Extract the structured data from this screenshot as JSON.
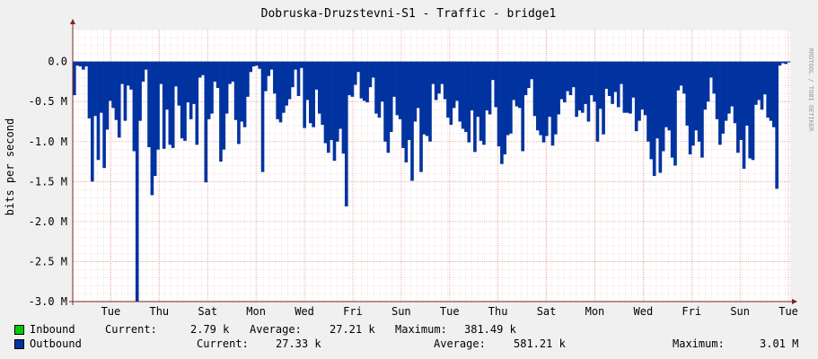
{
  "title": "Dobruska-Druzstevni-S1 - Traffic - bridge1",
  "watermark": "RRDTOOL / TOBI OETIKER",
  "chart_data": {
    "type": "area",
    "ylabel": "bits per second",
    "ylim": [
      -3000000,
      400000
    ],
    "yticks": [
      "0.0",
      "-0.5 M",
      "-1.0 M",
      "-1.5 M",
      "-2.0 M",
      "-2.5 M",
      "-3.0 M"
    ],
    "ytick_values": [
      0,
      -500000,
      -1000000,
      -1500000,
      -2000000,
      -2500000,
      -3000000
    ],
    "xticks": [
      "Tue",
      "Thu",
      "Sat",
      "Mon",
      "Wed",
      "Fri",
      "Sun",
      "Tue",
      "Thu",
      "Sat",
      "Mon",
      "Wed",
      "Fri",
      "Sun",
      "Tue"
    ],
    "grid": true,
    "colors": {
      "inbound": "#00cc00",
      "outbound": "#0033a0",
      "background": "#ffffff",
      "grid": "#e8a0a0",
      "axis": "#802020"
    },
    "series": [
      {
        "name": "Inbound",
        "values": [
          10,
          30,
          20,
          0,
          20,
          130,
          0,
          80,
          0,
          30,
          40,
          20,
          0,
          40,
          20,
          0,
          30,
          0,
          0,
          30,
          130,
          0,
          20,
          0,
          0,
          20,
          60,
          380,
          0,
          0,
          20,
          20,
          0,
          30,
          0,
          0,
          20,
          10,
          0,
          30,
          20,
          0,
          20,
          0,
          30,
          10,
          0,
          40,
          0,
          0,
          30,
          0,
          0,
          20,
          40,
          0,
          0,
          0,
          20,
          0,
          30,
          0,
          0,
          20,
          10,
          0,
          20,
          20,
          0,
          0,
          10,
          0,
          20,
          0,
          20,
          0,
          10,
          30,
          0,
          20,
          0,
          0,
          10,
          0,
          20,
          0,
          0,
          0,
          20,
          20,
          0,
          20,
          10,
          0,
          20,
          10,
          0,
          0,
          0,
          20,
          0,
          0,
          30,
          0,
          20,
          0,
          30,
          0,
          30,
          0,
          0,
          20,
          0,
          10,
          0,
          20,
          0,
          0,
          0,
          20,
          20,
          0,
          0,
          10,
          0,
          20,
          0,
          0,
          80,
          0,
          20,
          30,
          20,
          0,
          0,
          10,
          0,
          20,
          0,
          0,
          20,
          0,
          30,
          0,
          0,
          0,
          0,
          10,
          0,
          0,
          20,
          0,
          10,
          10,
          0,
          30,
          0,
          20,
          0,
          0,
          10,
          0,
          0,
          80,
          10,
          20,
          30,
          0,
          0,
          20,
          0,
          20,
          0,
          20,
          0,
          0,
          20,
          0,
          0,
          30,
          0,
          20,
          10,
          0,
          0,
          20,
          0,
          20,
          0,
          0,
          20,
          0,
          30,
          0,
          0,
          0,
          0,
          20,
          10,
          0,
          0,
          20,
          0,
          0,
          20,
          0,
          10,
          0,
          0,
          20,
          0,
          0,
          0,
          20,
          0,
          0,
          20,
          10,
          0,
          0,
          0,
          20,
          0,
          10,
          0,
          20,
          0,
          80,
          20,
          0,
          20,
          0
        ],
        "dates_note": ""
      },
      {
        "name": "Outbound",
        "values": [
          -420000,
          -50000,
          -60000,
          -100000,
          -60000,
          -710000,
          -1500000,
          -680000,
          -1230000,
          -640000,
          -1330000,
          -850000,
          -490000,
          -580000,
          -730000,
          -950000,
          -280000,
          -740000,
          -300000,
          -350000,
          -1120000,
          -3000000,
          -740000,
          -250000,
          -100000,
          -1070000,
          -1670000,
          -1430000,
          -1100000,
          -280000,
          -1090000,
          -600000,
          -1040000,
          -1080000,
          -310000,
          -550000,
          -960000,
          -990000,
          -510000,
          -720000,
          -530000,
          -1040000,
          -200000,
          -170000,
          -1510000,
          -720000,
          -650000,
          -250000,
          -330000,
          -1250000,
          -1100000,
          -650000,
          -280000,
          -250000,
          -730000,
          -1030000,
          -750000,
          -820000,
          -440000,
          -130000,
          -60000,
          -50000,
          -90000,
          -1380000,
          -370000,
          -180000,
          -100000,
          -400000,
          -720000,
          -760000,
          -640000,
          -550000,
          -470000,
          -320000,
          -100000,
          -430000,
          -80000,
          -830000,
          -480000,
          -770000,
          -820000,
          -350000,
          -650000,
          -790000,
          -1020000,
          -1140000,
          -980000,
          -1240000,
          -1000000,
          -840000,
          -1150000,
          -1810000,
          -420000,
          -440000,
          -290000,
          -130000,
          -460000,
          -490000,
          -510000,
          -320000,
          -200000,
          -650000,
          -700000,
          -500000,
          -1000000,
          -1140000,
          -880000,
          -440000,
          -670000,
          -720000,
          -1080000,
          -1260000,
          -980000,
          -1490000,
          -750000,
          -580000,
          -1380000,
          -910000,
          -930000,
          -1000000,
          -280000,
          -480000,
          -400000,
          -280000,
          -470000,
          -700000,
          -790000,
          -580000,
          -490000,
          -750000,
          -840000,
          -880000,
          -1010000,
          -610000,
          -1130000,
          -690000,
          -990000,
          -1040000,
          -610000,
          -660000,
          -230000,
          -570000,
          -1060000,
          -1280000,
          -1160000,
          -920000,
          -900000,
          -480000,
          -560000,
          -580000,
          -1120000,
          -420000,
          -330000,
          -220000,
          -680000,
          -860000,
          -920000,
          -1010000,
          -930000,
          -690000,
          -1050000,
          -910000,
          -660000,
          -470000,
          -510000,
          -370000,
          -420000,
          -320000,
          -690000,
          -610000,
          -640000,
          -530000,
          -750000,
          -420000,
          -500000,
          -1000000,
          -590000,
          -910000,
          -340000,
          -430000,
          -530000,
          -380000,
          -570000,
          -280000,
          -640000,
          -640000,
          -650000,
          -450000,
          -870000,
          -740000,
          -600000,
          -670000,
          -1000000,
          -1220000,
          -1430000,
          -960000,
          -1390000,
          -1120000,
          -820000,
          -860000,
          -1200000,
          -1300000,
          -360000,
          -300000,
          -400000,
          -800000,
          -1160000,
          -1050000,
          -860000,
          -1000000,
          -1200000,
          -600000,
          -500000,
          -200000,
          -400000,
          -720000,
          -1040000,
          -900000,
          -740000,
          -650000,
          -560000,
          -770000,
          -1140000,
          -980000,
          -1340000,
          -800000,
          -1210000,
          -1230000,
          -540000,
          -480000,
          -600000,
          -410000,
          -700000,
          -740000,
          -820000,
          -1590000,
          -50000,
          -20000,
          -30000,
          -10000
        ]
      }
    ]
  },
  "legend": {
    "inbound": {
      "label": "Inbound",
      "current_label": "Current:",
      "current": "2.79 k",
      "average_label": "Average:",
      "average": "27.21 k",
      "maximum_label": "Maximum:",
      "maximum": "381.49 k"
    },
    "outbound": {
      "label": "Outbound",
      "current_label": "Current:",
      "current": "27.33 k",
      "average_label": "Average:",
      "average": "581.21 k",
      "maximum_label": "Maximum:",
      "maximum": "3.01 M"
    }
  }
}
